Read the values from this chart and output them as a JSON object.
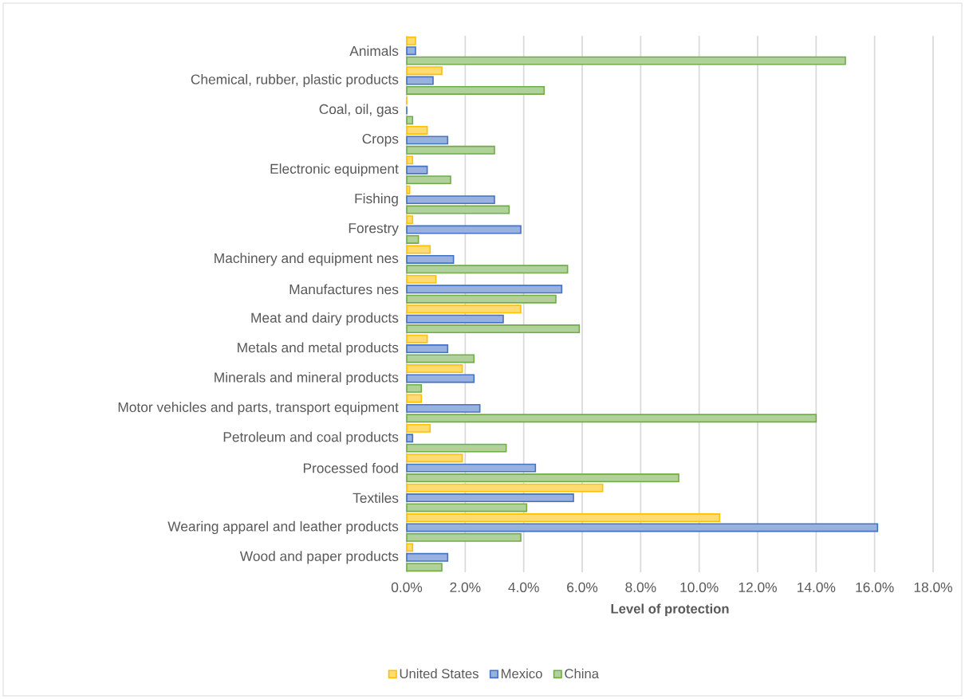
{
  "chart_data": {
    "type": "bar",
    "orientation": "horizontal",
    "xlabel": "Level of protection",
    "categories": [
      "Animals",
      "Chemical, rubber, plastic products",
      "Coal, oil, gas",
      "Crops",
      "Electronic equipment",
      "Fishing",
      "Forestry",
      "Machinery and equipment nes",
      "Manufactures nes",
      "Meat and dairy products",
      "Metals and metal products",
      "Minerals and mineral products",
      "Motor vehicles and parts, transport equipment",
      "Petroleum and coal products",
      "Processed food",
      "Textiles",
      "Wearing apparel and leather products",
      "Wood and paper products"
    ],
    "series": [
      {
        "name": "United States",
        "color": "#ffc000",
        "values": [
          0.3,
          1.2,
          0,
          0.7,
          0.2,
          0.1,
          0.2,
          0.8,
          1.0,
          3.9,
          0.7,
          1.9,
          0.5,
          0.8,
          1.9,
          6.7,
          10.7,
          0.2
        ]
      },
      {
        "name": "Mexico",
        "color": "#4472c4",
        "values": [
          0.3,
          0.9,
          0,
          1.4,
          0.7,
          3.0,
          3.9,
          1.6,
          5.3,
          3.3,
          1.4,
          2.3,
          2.5,
          0.2,
          4.4,
          5.7,
          16.1,
          1.4
        ]
      },
      {
        "name": "China",
        "color": "#70ad47",
        "values": [
          15.0,
          4.7,
          0.2,
          3.0,
          1.5,
          3.5,
          0.4,
          5.5,
          5.1,
          5.9,
          2.3,
          0.5,
          14.0,
          3.4,
          9.3,
          4.1,
          3.9,
          1.2
        ]
      }
    ],
    "xlim": [
      0,
      18
    ],
    "xticks": [
      {
        "value": 0,
        "label": "0.0%"
      },
      {
        "value": 2,
        "label": "2.0%"
      },
      {
        "value": 4,
        "label": "4.0%"
      },
      {
        "value": 6,
        "label": "6.0%"
      },
      {
        "value": 8,
        "label": "8.0%"
      },
      {
        "value": 10,
        "label": "10.0%"
      },
      {
        "value": 12,
        "label": "12.0%"
      },
      {
        "value": 14,
        "label": "14.0%"
      },
      {
        "value": 16,
        "label": "16.0%"
      },
      {
        "value": 18,
        "label": "18.0%"
      }
    ],
    "grid": "x",
    "legend": "bottom"
  }
}
